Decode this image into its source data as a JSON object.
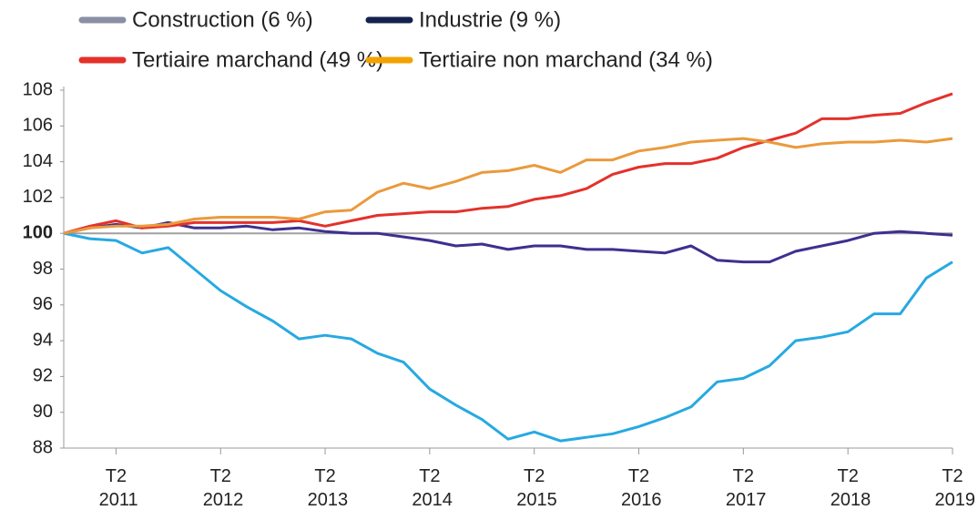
{
  "chart_data": {
    "type": "line",
    "categories": [
      null,
      null,
      "T2 2011",
      null,
      null,
      null,
      "T2 2012",
      null,
      null,
      null,
      "T2 2013",
      null,
      null,
      null,
      "T2 2014",
      null,
      null,
      null,
      "T2 2015",
      null,
      null,
      null,
      "T2 2016",
      null,
      null,
      null,
      "T2 2017",
      null,
      null,
      null,
      "T2 2018",
      null,
      null,
      null,
      "T2 2019"
    ],
    "series": [
      {
        "name": "Construction (6 %)",
        "color": "#27a9e1",
        "legend_color": "#8a8fa6",
        "values": [
          100,
          99.7,
          99.6,
          98.9,
          99.2,
          98.0,
          96.8,
          95.9,
          95.1,
          94.1,
          94.3,
          94.1,
          93.3,
          92.8,
          91.3,
          90.4,
          89.6,
          88.5,
          88.9,
          88.4,
          88.6,
          88.8,
          89.2,
          89.7,
          90.3,
          91.7,
          91.9,
          92.6,
          94.0,
          94.2,
          94.5,
          95.5,
          95.5,
          97.5,
          98.4
        ]
      },
      {
        "name": "Industrie (9 %)",
        "color": "#3f2f8f",
        "legend_color": "#14224f",
        "values": [
          100,
          100.3,
          100.5,
          100.3,
          100.6,
          100.3,
          100.3,
          100.4,
          100.2,
          100.3,
          100.1,
          100.0,
          100.0,
          99.8,
          99.6,
          99.3,
          99.4,
          99.1,
          99.3,
          99.3,
          99.1,
          99.1,
          99.0,
          98.9,
          99.3,
          98.5,
          98.4,
          98.4,
          99.0,
          99.3,
          99.6,
          100.0,
          100.1,
          100.0,
          99.9
        ]
      },
      {
        "name": "Tertiaire marchand (49 %)",
        "color": "#e4312b",
        "legend_color": "#e4312b",
        "values": [
          100,
          100.4,
          100.7,
          100.3,
          100.4,
          100.6,
          100.6,
          100.6,
          100.6,
          100.7,
          100.4,
          100.7,
          101.0,
          101.1,
          101.2,
          101.2,
          101.4,
          101.5,
          101.9,
          102.1,
          102.5,
          103.3,
          103.7,
          103.9,
          103.9,
          104.2,
          104.8,
          105.2,
          105.6,
          106.4,
          106.4,
          106.6,
          106.7,
          107.3,
          107.8
        ]
      },
      {
        "name": "Tertiaire non marchand (34 %)",
        "color": "#ea9a3c",
        "legend_color": "#f3a200",
        "values": [
          100,
          100.3,
          100.4,
          100.4,
          100.5,
          100.8,
          100.9,
          100.9,
          100.9,
          100.8,
          101.2,
          101.3,
          102.3,
          102.8,
          102.5,
          102.9,
          103.4,
          103.5,
          103.8,
          103.4,
          104.1,
          104.1,
          104.6,
          104.8,
          105.1,
          105.2,
          105.3,
          105.1,
          104.8,
          105.0,
          105.1,
          105.1,
          105.2,
          105.1,
          105.3
        ]
      }
    ],
    "ylim": [
      88,
      108
    ],
    "yticks": [
      88,
      90,
      92,
      94,
      96,
      98,
      100,
      102,
      104,
      106,
      108
    ],
    "reference_line": 100,
    "reference_color": "#a0a0a0"
  }
}
